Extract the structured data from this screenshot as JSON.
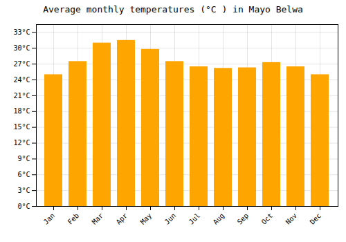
{
  "chart_data": {
    "type": "bar",
    "title": "Average monthly temperatures (°C ) in Mayo Belwa",
    "categories": [
      "Jan",
      "Feb",
      "Mar",
      "Apr",
      "May",
      "Jun",
      "Jul",
      "Aug",
      "Sep",
      "Oct",
      "Nov",
      "Dec"
    ],
    "values": [
      25.0,
      27.5,
      31.0,
      31.5,
      29.8,
      27.5,
      26.5,
      26.2,
      26.3,
      27.3,
      26.5,
      25.0
    ],
    "color": "#FFA500",
    "ylim": [
      0,
      34.5
    ],
    "yticks": [
      {
        "value": 0,
        "label": "0°C"
      },
      {
        "value": 3,
        "label": "3°C"
      },
      {
        "value": 6,
        "label": "6°C"
      },
      {
        "value": 9,
        "label": "9°C"
      },
      {
        "value": 12,
        "label": "12°C"
      },
      {
        "value": 15,
        "label": "15°C"
      },
      {
        "value": 18,
        "label": "18°C"
      },
      {
        "value": 21,
        "label": "21°C"
      },
      {
        "value": 24,
        "label": "24°C"
      },
      {
        "value": 27,
        "label": "27°C"
      },
      {
        "value": 30,
        "label": "30°C"
      },
      {
        "value": 33,
        "label": "33°C"
      }
    ],
    "grid": true
  }
}
